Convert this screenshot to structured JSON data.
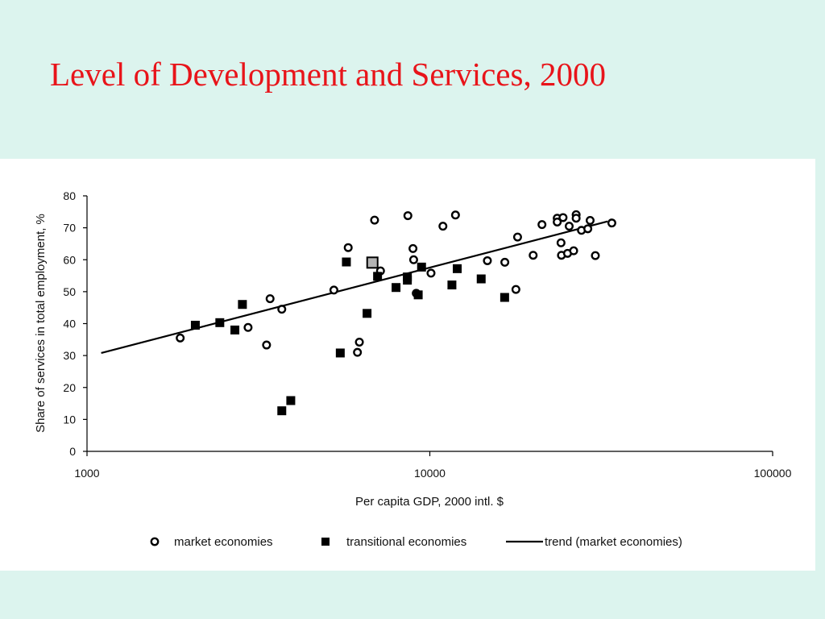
{
  "slide": {
    "title": "Level of Development and Services, 2000",
    "background": "#dcf4ee",
    "title_color": "#e8141a"
  },
  "chart_data": {
    "type": "scatter",
    "title": "",
    "xlabel": "Per capita GDP, 2000 intl. $",
    "ylabel": "Share of services in total employment, %",
    "x_scale": "log",
    "xlim": [
      1000,
      100000
    ],
    "ylim": [
      0,
      80
    ],
    "x_ticks": [
      "1000",
      "10000",
      "100000"
    ],
    "y_ticks": [
      "0",
      "10",
      "20",
      "30",
      "40",
      "50",
      "60",
      "70",
      "80"
    ],
    "grid": false,
    "legend_position": "bottom",
    "series": [
      {
        "name": "market economies",
        "marker": "open-circle",
        "points": [
          [
            1870,
            35.5
          ],
          [
            2950,
            38.8
          ],
          [
            3340,
            33.3
          ],
          [
            3420,
            47.8
          ],
          [
            3700,
            44.5
          ],
          [
            5250,
            50.5
          ],
          [
            5780,
            63.8
          ],
          [
            6150,
            31.0
          ],
          [
            6230,
            34.2
          ],
          [
            6900,
            72.4
          ],
          [
            7180,
            56.5
          ],
          [
            8630,
            73.8
          ],
          [
            8930,
            63.5
          ],
          [
            8970,
            60.0
          ],
          [
            9130,
            49.5
          ],
          [
            10080,
            55.8
          ],
          [
            10920,
            70.5
          ],
          [
            11880,
            74.0
          ],
          [
            14720,
            59.7
          ],
          [
            16550,
            59.2
          ],
          [
            17830,
            50.7
          ],
          [
            18030,
            67.1
          ],
          [
            20020,
            61.4
          ],
          [
            21240,
            71.0
          ],
          [
            23530,
            73.0
          ],
          [
            23530,
            71.8
          ],
          [
            24140,
            65.3
          ],
          [
            24210,
            61.4
          ],
          [
            24470,
            73.2
          ],
          [
            25220,
            62.0
          ],
          [
            25500,
            70.5
          ],
          [
            26280,
            62.8
          ],
          [
            26720,
            74.1
          ],
          [
            26720,
            73.0
          ],
          [
            27690,
            69.2
          ],
          [
            28900,
            69.7
          ],
          [
            29350,
            72.3
          ],
          [
            30400,
            61.3
          ],
          [
            33960,
            71.5
          ]
        ]
      },
      {
        "name": "transitional economies",
        "marker": "filled-square",
        "points": [
          [
            2070,
            39.5
          ],
          [
            2440,
            40.3
          ],
          [
            2700,
            38.0
          ],
          [
            2840,
            46.0
          ],
          [
            3700,
            12.7
          ],
          [
            3930,
            15.9
          ],
          [
            5480,
            30.8
          ],
          [
            5710,
            59.3
          ],
          [
            6560,
            43.2
          ],
          [
            7040,
            54.8
          ],
          [
            7970,
            51.3
          ],
          [
            8600,
            53.6
          ],
          [
            8600,
            54.6
          ],
          [
            9250,
            49.0
          ],
          [
            9460,
            57.7
          ],
          [
            11600,
            52.1
          ],
          [
            12020,
            57.2
          ],
          [
            14120,
            54.0
          ],
          [
            16530,
            48.2
          ]
        ],
        "highlighted_points": [
          [
            6800,
            59.1
          ]
        ]
      },
      {
        "name": "trend (market economies)",
        "marker": "line",
        "points": [
          [
            1100,
            30.8
          ],
          [
            33000,
            72.0
          ]
        ]
      }
    ]
  }
}
